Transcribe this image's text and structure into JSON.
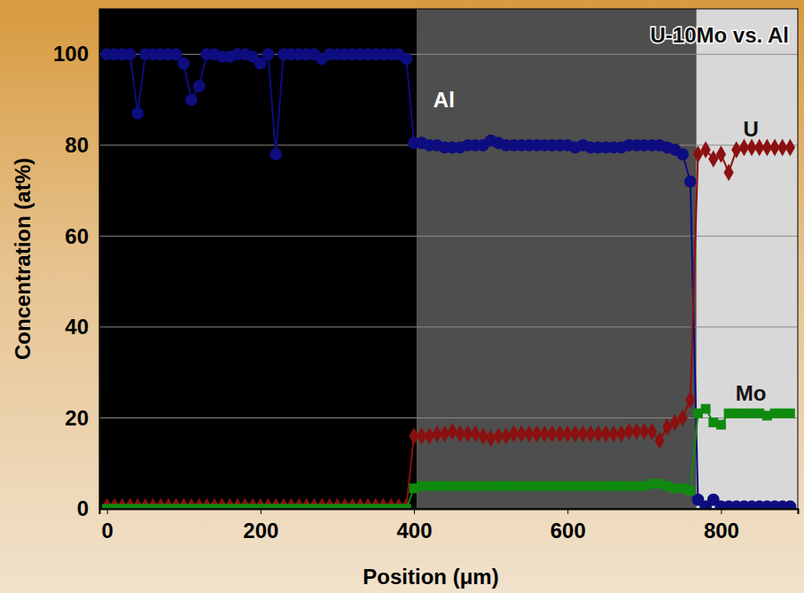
{
  "chart_data": {
    "type": "line",
    "title": "U-10Mo vs. Al",
    "x_label": "Position (μm)",
    "y_label": "Concentration (at%)",
    "xlim": [
      -10,
      900
    ],
    "ylim": [
      0,
      110
    ],
    "xticks": [
      0,
      200,
      400,
      600,
      800
    ],
    "yticks": [
      0,
      20,
      40,
      60,
      80,
      100
    ],
    "grid": true,
    "x": [
      0,
      10,
      20,
      30,
      40,
      50,
      60,
      70,
      80,
      90,
      100,
      110,
      120,
      130,
      140,
      150,
      160,
      170,
      180,
      190,
      200,
      210,
      220,
      230,
      240,
      250,
      260,
      270,
      280,
      290,
      300,
      310,
      320,
      330,
      340,
      350,
      360,
      370,
      380,
      390,
      400,
      410,
      420,
      430,
      440,
      450,
      460,
      470,
      480,
      490,
      500,
      510,
      520,
      530,
      540,
      550,
      560,
      570,
      580,
      590,
      600,
      610,
      620,
      630,
      640,
      650,
      660,
      670,
      680,
      690,
      700,
      710,
      720,
      730,
      740,
      750,
      760,
      770,
      780,
      790,
      800,
      810,
      820,
      830,
      840,
      850,
      860,
      870,
      880,
      890
    ],
    "series": [
      {
        "name": "Al",
        "color": "#0d0d80",
        "marker": "circle",
        "line_style": "solid",
        "values": [
          100,
          100,
          100,
          100,
          87,
          100,
          100,
          100,
          100,
          100,
          98,
          90,
          93,
          100,
          100,
          99.5,
          99.5,
          100,
          100,
          99.5,
          98,
          100,
          78,
          100,
          100,
          100,
          100,
          100,
          99,
          100,
          100,
          100,
          100,
          100,
          100,
          100,
          100,
          100,
          100,
          99,
          80.5,
          80.5,
          80,
          80,
          79.5,
          79.5,
          79.5,
          80,
          80,
          80,
          81,
          80.5,
          80,
          80,
          80,
          80,
          80,
          80,
          80,
          80,
          80,
          79.5,
          80,
          79.5,
          79.5,
          79.5,
          79.5,
          79.5,
          80,
          80,
          80,
          80,
          80,
          79.5,
          79,
          78,
          72,
          2,
          0.5,
          2,
          0.5,
          0.5,
          0.5,
          0.5,
          0.5,
          0.5,
          0.5,
          0.5,
          0.5,
          0.5
        ]
      },
      {
        "name": "U",
        "color": "#8b1010",
        "marker": "diamond",
        "line_style": "solid",
        "values": [
          0.5,
          0.5,
          0.5,
          0.5,
          0.5,
          0.5,
          0.5,
          0.5,
          0.5,
          0.5,
          0.5,
          0.5,
          0.5,
          0.5,
          0.5,
          0.5,
          0.5,
          0.5,
          0.5,
          0.5,
          0.5,
          0.5,
          0.5,
          0.5,
          0.5,
          0.5,
          0.5,
          0.5,
          0.5,
          0.5,
          0.5,
          0.5,
          0.5,
          0.5,
          0.5,
          0.5,
          0.5,
          0.5,
          0.5,
          0.5,
          16,
          16,
          16,
          16.5,
          16.5,
          17,
          16.5,
          16.5,
          16.5,
          16,
          15.5,
          16,
          16,
          16.5,
          16.5,
          16.5,
          16.5,
          16.5,
          16.5,
          16.5,
          16.5,
          16.5,
          16.5,
          16.5,
          16.5,
          16.5,
          16.5,
          16.5,
          17,
          17,
          17,
          17,
          15,
          18,
          19,
          20,
          24,
          78,
          79,
          77,
          78,
          74,
          79,
          79.5,
          79.5,
          79.5,
          79.5,
          79.5,
          79.5,
          79.5
        ]
      },
      {
        "name": "Mo",
        "color": "#0f8a0f",
        "marker": "square",
        "line_style": "solid",
        "values": [
          0,
          0,
          0,
          0,
          0,
          0,
          0,
          0,
          0,
          0,
          0,
          0,
          0,
          0,
          0,
          0,
          0,
          0,
          0,
          0,
          0,
          0,
          0,
          0,
          0,
          0,
          0,
          0,
          0,
          0,
          0,
          0,
          0,
          0,
          0,
          0,
          0,
          0,
          0,
          0,
          4.5,
          5,
          5,
          5,
          5,
          5,
          5,
          5,
          5,
          5,
          5,
          5,
          5,
          5,
          5,
          5,
          5,
          5,
          5,
          5,
          5,
          5,
          5,
          5,
          5,
          5,
          5,
          5,
          5,
          5,
          5,
          5.5,
          5.5,
          5,
          4.5,
          4.5,
          4,
          21,
          22,
          19,
          18.5,
          21,
          21,
          21,
          21,
          21,
          20.5,
          21,
          21,
          21
        ]
      }
    ],
    "annotations": [
      {
        "text": "Al",
        "x": 439,
        "y": 90,
        "color": "#ffffff"
      },
      {
        "text": "U",
        "x": 839,
        "y": 83.5,
        "color": "#111111"
      },
      {
        "text": "Mo",
        "x": 839,
        "y": 25.5,
        "color": "#111111"
      }
    ]
  }
}
